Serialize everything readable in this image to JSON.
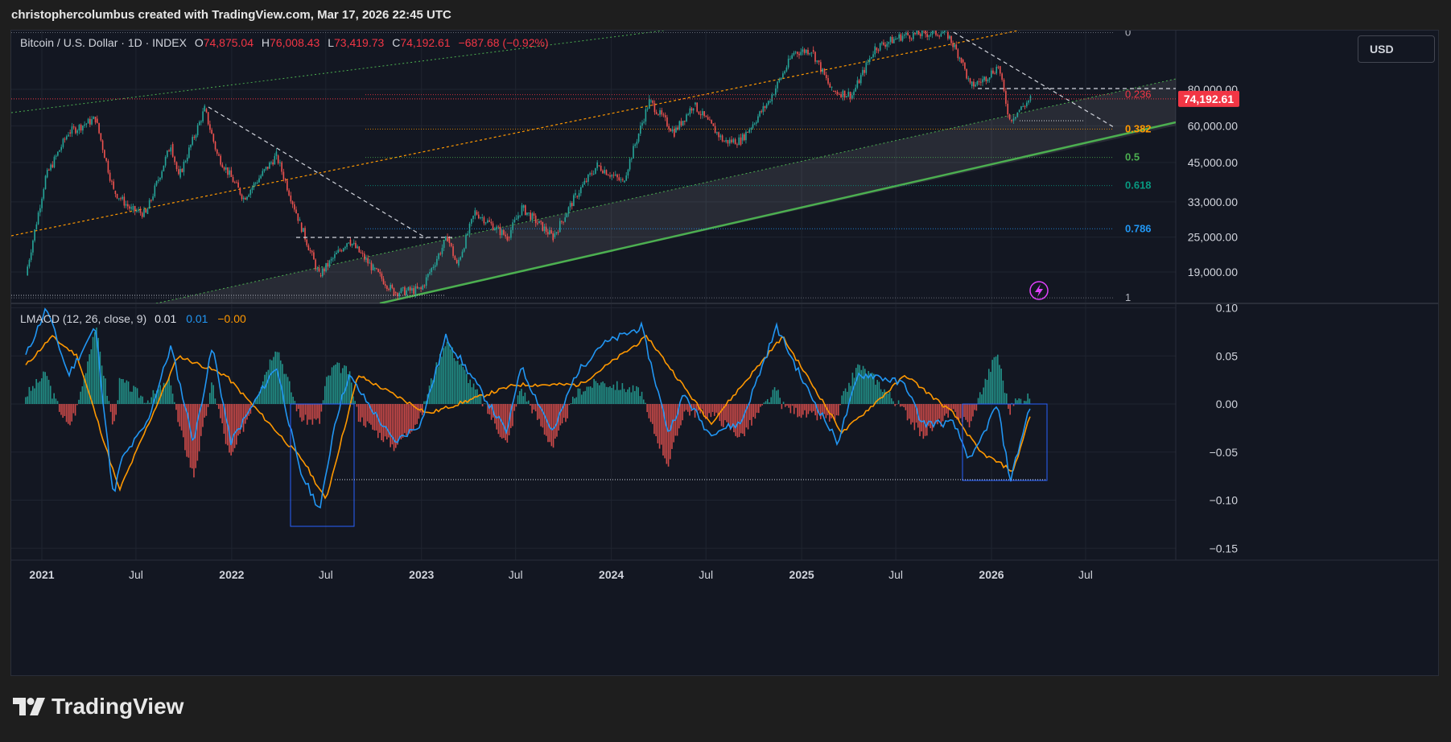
{
  "header": {
    "attribution": "christophercolumbus created with TradingView.com, Mar 17, 2026 22:45 UTC"
  },
  "price_legend": {
    "symbol": "Bitcoin / U.S. Dollar · 1D · INDEX",
    "o_label": "O",
    "open": "74,875.04",
    "h_label": "H",
    "high": "76,008.43",
    "l_label": "L",
    "low": "73,419.73",
    "c_label": "C",
    "close": "74,192.61",
    "change": "−687.68 (−0.92%)"
  },
  "macd_legend": {
    "name": "LMACD (12, 26, close, 9)",
    "v1": "0.01",
    "v2": "0.01",
    "v3": "−0.00"
  },
  "currency_button": "USD",
  "brand": "TradingView",
  "colors": {
    "background": "#131722",
    "up": "#26a69a",
    "down": "#ef5350",
    "macd_line": "#2196f3",
    "signal_line": "#ff9800",
    "fib_0236": "#f23645",
    "fib_0382": "#ff9800",
    "fib_05": "#4caf50",
    "fib_0618": "#089981",
    "fib_0786": "#2196f3",
    "fib_edge": "#787b86",
    "channel_support": "#4caf50",
    "last_price_tag": "#f23645"
  },
  "chart_data": [
    {
      "type": "candlestick",
      "title": "Bitcoin / U.S. Dollar · 1D · INDEX",
      "scale": "log",
      "x_ticks": [
        "2021",
        "Jul",
        "2022",
        "Jul",
        "2023",
        "Jul",
        "2024",
        "Jul",
        "2025",
        "Jul",
        "2026",
        "Jul"
      ],
      "x_tick_dates": [
        "2021-01-01",
        "2021-07-01",
        "2022-01-01",
        "2022-07-01",
        "2023-01-01",
        "2023-07-01",
        "2024-01-01",
        "2024-07-01",
        "2025-01-01",
        "2025-07-01",
        "2026-01-01",
        "2026-07-01"
      ],
      "y_ticks": [
        "80,000.00",
        "60,000.00",
        "45,000.00",
        "33,000.00",
        "25,000.00",
        "19,000.00"
      ],
      "y_tick_values": [
        80000,
        60000,
        45000,
        33000,
        25000,
        19000
      ],
      "last_price": "74,192.61",
      "series": [
        {
          "name": "BTCUSD close (approx.)",
          "x": [
            "2020-12-01",
            "2021-01-08",
            "2021-02-21",
            "2021-04-14",
            "2021-05-19",
            "2021-06-22",
            "2021-07-20",
            "2021-09-06",
            "2021-09-21",
            "2021-11-10",
            "2021-12-04",
            "2022-01-24",
            "2022-03-28",
            "2022-05-12",
            "2022-06-18",
            "2022-08-14",
            "2022-09-30",
            "2022-11-09",
            "2022-12-31",
            "2023-02-20",
            "2023-03-10",
            "2023-04-14",
            "2023-06-15",
            "2023-07-13",
            "2023-09-11",
            "2023-10-24",
            "2023-12-05",
            "2024-01-23",
            "2024-03-14",
            "2024-05-01",
            "2024-06-07",
            "2024-08-05",
            "2024-09-06",
            "2024-10-29",
            "2024-12-17",
            "2025-01-20",
            "2025-02-28",
            "2025-04-08",
            "2025-05-22",
            "2025-07-14",
            "2025-08-14",
            "2025-10-06",
            "2025-11-04",
            "2025-11-21",
            "2025-12-15",
            "2026-01-14",
            "2026-02-05",
            "2026-02-20",
            "2026-03-17"
          ],
          "y": [
            18500,
            40000,
            57000,
            63500,
            36000,
            31000,
            30000,
            52000,
            40000,
            68500,
            48000,
            34000,
            47500,
            28000,
            18500,
            24500,
            19500,
            16200,
            16550,
            25000,
            20000,
            30500,
            25000,
            31500,
            25000,
            34500,
            44000,
            38500,
            73000,
            57000,
            71000,
            53000,
            53500,
            72500,
            107000,
            109000,
            79000,
            76500,
            111000,
            122000,
            123500,
            125500,
            101000,
            82000,
            86000,
            96000,
            63000,
            67000,
            74192.61
          ]
        }
      ],
      "fibonacci": {
        "labels": [
          "0",
          "0.236",
          "0.382",
          "0.5",
          "0.618",
          "0.786",
          "1"
        ],
        "prices": [
          125000,
          76700,
          58500,
          46800,
          37500,
          26700,
          15500
        ]
      },
      "annotations": [
        "ascending channel",
        "descending trendlines",
        "macd divergence boxes"
      ]
    },
    {
      "type": "line",
      "title": "LMACD (12, 26, close, 9)",
      "y_ticks": [
        "0.10",
        "0.05",
        "0.00",
        "−0.05",
        "−0.10",
        "−0.15"
      ],
      "y_tick_values": [
        0.1,
        0.05,
        0,
        -0.05,
        -0.1,
        -0.15
      ],
      "series": [
        {
          "name": "MACD",
          "x": [
            "2020-12-01",
            "2021-01-10",
            "2021-02-21",
            "2021-04-14",
            "2021-05-19",
            "2021-06-01",
            "2021-07-22",
            "2021-09-06",
            "2021-10-20",
            "2021-11-25",
            "2021-12-30",
            "2022-03-28",
            "2022-05-12",
            "2022-06-20",
            "2022-07-18",
            "2022-08-14",
            "2022-11-10",
            "2022-12-31",
            "2023-02-17",
            "2023-06-15",
            "2023-07-10",
            "2023-09-11",
            "2023-10-24",
            "2023-12-08",
            "2024-02-28",
            "2024-04-20",
            "2024-05-20",
            "2024-07-06",
            "2024-09-06",
            "2024-11-14",
            "2025-01-07",
            "2025-03-11",
            "2025-04-20",
            "2025-05-20",
            "2025-07-20",
            "2025-08-20",
            "2025-10-20",
            "2025-11-22",
            "2026-01-12",
            "2026-02-06",
            "2026-03-17"
          ],
          "y": [
            0.05,
            0.1,
            0.03,
            0.08,
            -0.1,
            -0.06,
            -0.02,
            0.06,
            -0.04,
            0.06,
            -0.04,
            0.04,
            -0.07,
            -0.11,
            -0.02,
            0.03,
            -0.04,
            -0.02,
            0.07,
            -0.03,
            0.04,
            -0.03,
            0.03,
            0.06,
            0.08,
            -0.03,
            0.01,
            -0.03,
            -0.02,
            0.08,
            0.02,
            -0.04,
            0.03,
            0.03,
            0.02,
            -0.02,
            -0.02,
            -0.06,
            0.0,
            -0.08,
            0.0
          ]
        },
        {
          "name": "Signal",
          "x": [
            "2020-12-01",
            "2021-01-20",
            "2021-03-10",
            "2021-05-30",
            "2021-09-20",
            "2021-12-20",
            "2022-05-20",
            "2022-07-01",
            "2022-09-01",
            "2023-01-15",
            "2023-07-01",
            "2023-11-01",
            "2024-03-10",
            "2024-07-10",
            "2024-11-25",
            "2025-03-20",
            "2025-07-20",
            "2025-10-20",
            "2025-12-10",
            "2026-02-12",
            "2026-03-17"
          ],
          "y": [
            0.04,
            0.07,
            0.05,
            -0.09,
            0.05,
            0.03,
            -0.06,
            -0.1,
            0.03,
            -0.01,
            0.02,
            0.02,
            0.07,
            -0.02,
            0.07,
            -0.03,
            0.03,
            -0.01,
            -0.05,
            -0.07,
            -0.01
          ]
        }
      ]
    }
  ]
}
